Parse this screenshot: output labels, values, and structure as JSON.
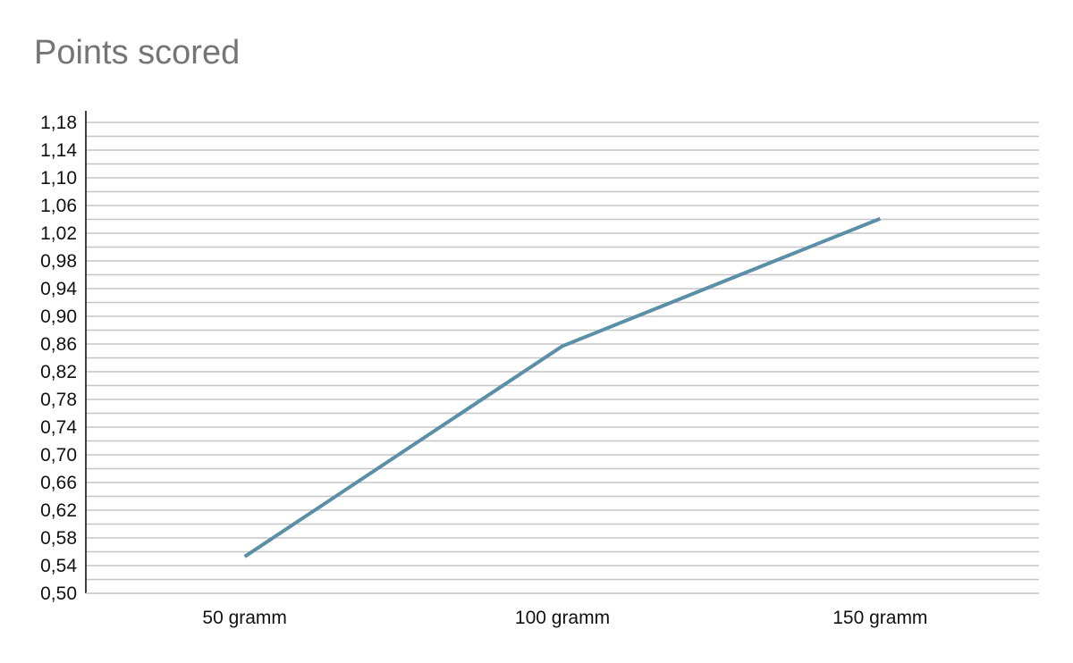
{
  "chart_data": {
    "type": "line",
    "title": "Points scored",
    "xlabel": "",
    "ylabel": "",
    "categories": [
      "50 gramm",
      "100 gramm",
      "150 gramm"
    ],
    "series": [
      {
        "values": [
          0.553,
          0.857,
          1.041
        ],
        "color": "#5b8fa8"
      }
    ],
    "ylim": [
      0.5,
      1.2
    ],
    "ytick_labels": [
      "0,50",
      "0,54",
      "0,58",
      "0,62",
      "0,66",
      "0,70",
      "0,74",
      "0,78",
      "0,82",
      "0,86",
      "0,90",
      "0,94",
      "0,98",
      "1,02",
      "1,06",
      "1,10",
      "1,14",
      "1,18"
    ],
    "grid": true,
    "legend": "none",
    "colors": {
      "title": "#757575",
      "grid": "#c6c6c6",
      "axis": "#000000"
    }
  }
}
